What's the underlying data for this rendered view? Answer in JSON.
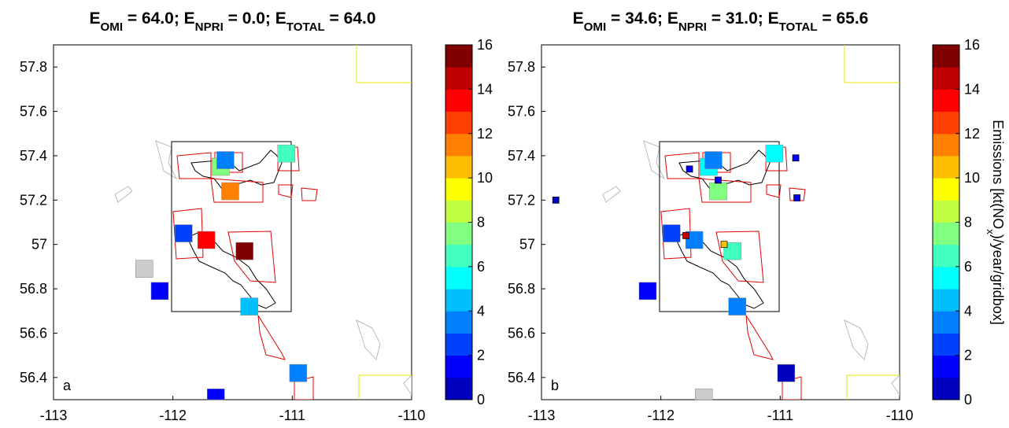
{
  "chart_data": [
    {
      "type": "map",
      "title": [
        "E",
        "OMI",
        " =  64.0; E",
        "NPRI",
        " =   0.0; E",
        "TOTAL",
        " =  64.0"
      ],
      "panel_label": "a",
      "xlim": [
        -113,
        -110
      ],
      "ylim": [
        56.3,
        57.9
      ],
      "xticks": [
        -113,
        -112,
        -111,
        -110
      ],
      "yticks": [
        56.4,
        56.6,
        56.8,
        57,
        57.2,
        57.4,
        57.6,
        57.8
      ],
      "lon": [
        -111.6,
        -111.56,
        -111.05,
        -111.52,
        -111.91,
        -111.72,
        -111.4,
        -112.24,
        -112.11,
        -111.36,
        -110.95,
        -111.64
      ],
      "lat": [
        57.35,
        57.38,
        57.41,
        57.24,
        57.05,
        57.02,
        56.97,
        56.89,
        56.79,
        56.72,
        56.42,
        56.31
      ],
      "values": [
        7.5,
        3.5,
        6,
        11.5,
        2,
        13,
        16,
        null,
        1.5,
        4,
        3.5,
        1.5
      ],
      "clim": [
        0,
        16
      ],
      "cticks": [
        0,
        2,
        4,
        6,
        8,
        10,
        12,
        14,
        16
      ],
      "colormap": [
        "#0000bf",
        "#0000ff",
        "#0040ff",
        "#0080ff",
        "#00bfff",
        "#00ffff",
        "#40ffbf",
        "#80ff80",
        "#bfff40",
        "#ffff00",
        "#ffbf00",
        "#ff8000",
        "#ff4000",
        "#ff0000",
        "#bf0000",
        "#800000"
      ]
    },
    {
      "type": "map",
      "title": [
        "E",
        "OMI",
        " =  34.6; E",
        "NPRI",
        " =  31.0; E",
        "TOTAL",
        " =  65.6"
      ],
      "panel_label": "b",
      "xlim": [
        -113,
        -110
      ],
      "ylim": [
        56.3,
        57.9
      ],
      "xticks": [
        -113,
        -112,
        -111,
        -110
      ],
      "yticks": [
        56.4,
        56.6,
        56.8,
        57,
        57.2,
        57.4,
        57.6,
        57.8
      ],
      "lon": [
        -111.6,
        -111.56,
        -111.05,
        -111.52,
        -111.91,
        -111.72,
        -111.4,
        -112.11,
        -111.36,
        -110.95,
        -111.64
      ],
      "lat": [
        57.35,
        57.38,
        57.41,
        57.24,
        57.05,
        57.02,
        56.97,
        56.79,
        56.72,
        56.42,
        56.31
      ],
      "values": [
        5.5,
        3,
        5.5,
        7,
        2,
        3,
        6.5,
        1.5,
        3.5,
        0.5,
        null
      ],
      "point_lon": [
        -112.88,
        -111.76,
        -111.52,
        -110.87,
        -110.86,
        -111.79,
        -111.47
      ],
      "point_lat": [
        57.2,
        57.34,
        57.29,
        57.39,
        57.21,
        57.04,
        57.0
      ],
      "point_values": [
        0.5,
        1,
        1,
        1,
        1,
        14,
        10
      ],
      "clim": [
        0,
        16
      ],
      "cticks": [
        0,
        2,
        4,
        6,
        8,
        10,
        12,
        14,
        16
      ],
      "colormap": [
        "#0000bf",
        "#0000ff",
        "#0040ff",
        "#0080ff",
        "#00bfff",
        "#00ffff",
        "#40ffbf",
        "#80ff80",
        "#bfff40",
        "#ffff00",
        "#ffbf00",
        "#ff8000",
        "#ff4000",
        "#ff0000",
        "#bf0000",
        "#800000"
      ],
      "colorbar_label": [
        "Emissions [kt(NO",
        "x",
        ")/year/gridbox]"
      ]
    }
  ]
}
